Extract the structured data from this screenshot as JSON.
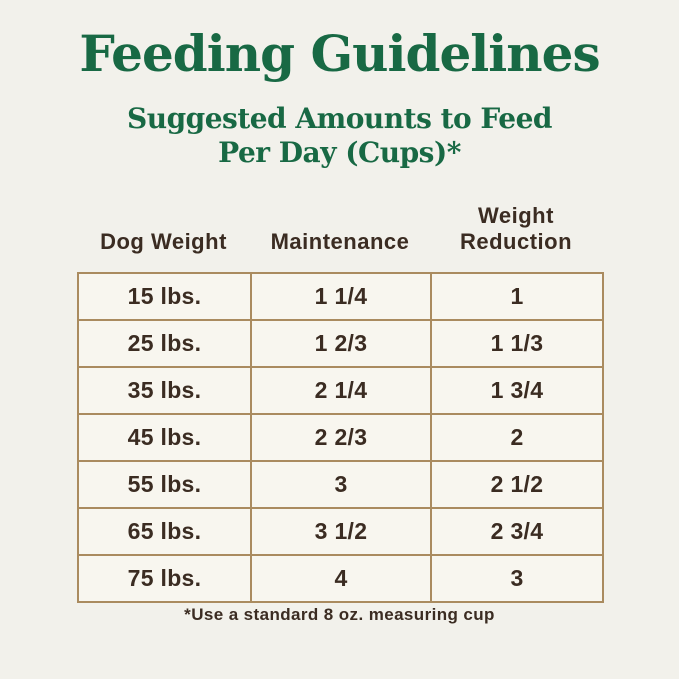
{
  "title": "Feeding Guidelines",
  "subtitle": {
    "line1": "Suggested Amounts to Feed",
    "line2": "Per Day (Cups)*"
  },
  "table": {
    "headers": [
      "Dog Weight",
      "Maintenance",
      "Weight Reduction"
    ],
    "rows": [
      [
        "15 lbs.",
        "1 1/4",
        "1"
      ],
      [
        "25 lbs.",
        "1 2/3",
        "1 1/3"
      ],
      [
        "35 lbs.",
        "2 1/4",
        "1 3/4"
      ],
      [
        "45 lbs.",
        "2 2/3",
        "2"
      ],
      [
        "55 lbs.",
        "3",
        "2 1/2"
      ],
      [
        "65 lbs.",
        "3 1/2",
        "2 3/4"
      ],
      [
        "75 lbs.",
        "4",
        "3"
      ]
    ]
  },
  "footnote": "*Use a standard 8 oz. measuring cup",
  "colors": {
    "heading_green": "#186944",
    "text_brown": "#3b2c22",
    "table_border_tan": "#aa8b5f",
    "page_background": "#f2f1eb",
    "cell_background": "#f8f6ef"
  },
  "chart_data": {
    "type": "table",
    "title": "Feeding Guidelines",
    "subtitle": "Suggested Amounts to Feed Per Day (Cups)*",
    "columns": [
      "Dog Weight",
      "Maintenance",
      "Weight Reduction"
    ],
    "categories": [
      "15 lbs.",
      "25 lbs.",
      "35 lbs.",
      "45 lbs.",
      "55 lbs.",
      "65 lbs.",
      "75 lbs."
    ],
    "series": [
      {
        "name": "Maintenance",
        "values_cups": [
          1.25,
          1.667,
          2.25,
          2.667,
          3,
          3.5,
          4
        ],
        "labels": [
          "1 1/4",
          "1 2/3",
          "2 1/4",
          "2 2/3",
          "3",
          "3 1/2",
          "4"
        ]
      },
      {
        "name": "Weight Reduction",
        "values_cups": [
          1,
          1.333,
          1.75,
          2,
          2.5,
          2.75,
          3
        ],
        "labels": [
          "1",
          "1 1/3",
          "1 3/4",
          "2",
          "2 1/2",
          "2 3/4",
          "3"
        ]
      }
    ],
    "footnote": "*Use a standard 8 oz. measuring cup"
  }
}
